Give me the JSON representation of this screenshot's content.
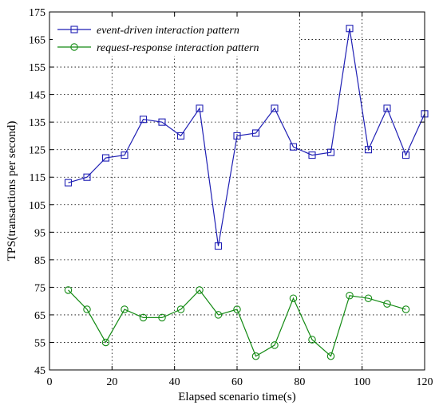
{
  "chart_data": {
    "type": "line",
    "title": "",
    "xlabel": "Elapsed scenario time(s)",
    "ylabel": "TPS(transactions per second)",
    "xlim": [
      0,
      120
    ],
    "ylim": [
      45,
      175
    ],
    "xticks": [
      0,
      20,
      40,
      60,
      80,
      100,
      120
    ],
    "yticks": [
      45,
      55,
      65,
      75,
      85,
      95,
      105,
      115,
      125,
      135,
      145,
      155,
      165,
      175
    ],
    "grid": true,
    "legend_position": "top-left",
    "series": [
      {
        "name": "event-driven interaction pattern",
        "color": "#1f1fb4",
        "marker": "square",
        "x": [
          6,
          12,
          18,
          24,
          30,
          36,
          42,
          48,
          54,
          60,
          66,
          72,
          78,
          84,
          90,
          96,
          102,
          108,
          114,
          120
        ],
        "y": [
          113,
          115,
          122,
          123,
          136,
          135,
          130,
          140,
          90,
          130,
          131,
          140,
          126,
          123,
          124,
          169,
          125,
          140,
          123,
          138
        ]
      },
      {
        "name": "request-response interaction pattern",
        "color": "#138a13",
        "marker": "circle",
        "x": [
          6,
          12,
          18,
          24,
          30,
          36,
          42,
          48,
          54,
          60,
          66,
          72,
          78,
          84,
          90,
          96,
          102,
          108,
          114
        ],
        "y": [
          74,
          67,
          55,
          67,
          64,
          64,
          67,
          74,
          65,
          67,
          50,
          54,
          71,
          56,
          50,
          72,
          71,
          69,
          67
        ]
      }
    ]
  }
}
